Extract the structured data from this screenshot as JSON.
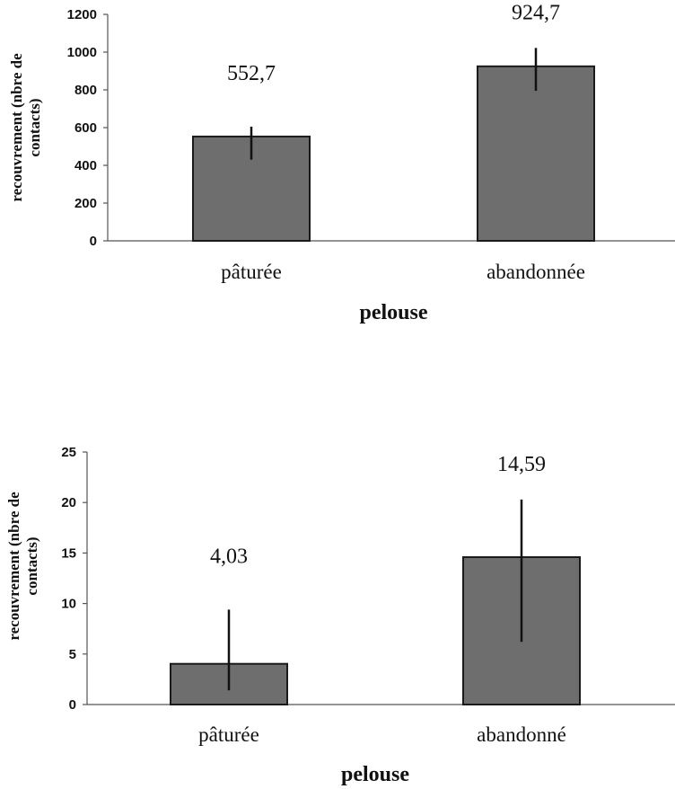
{
  "chart_data": [
    {
      "type": "bar",
      "categories": [
        "pâturée",
        "abandonnée"
      ],
      "values": [
        552.7,
        924.7
      ],
      "error": [
        [
          430,
          605
        ],
        [
          795,
          1022
        ]
      ],
      "data_labels": [
        "552,7",
        "924,7"
      ],
      "ylim": [
        0,
        1200
      ],
      "yticks": [
        0,
        200,
        400,
        600,
        800,
        1000,
        1200
      ],
      "ylabel_lines": [
        "recouvrement (nbre de",
        "contacts)"
      ],
      "xlabel": "pelouse",
      "bar_color": "#6e6e6e"
    },
    {
      "type": "bar",
      "categories": [
        "pâturée",
        "abandonné"
      ],
      "values": [
        4.03,
        14.59
      ],
      "error": [
        [
          1.4,
          9.4
        ],
        [
          6.2,
          20.3
        ]
      ],
      "data_labels": [
        "4,03",
        "14,59"
      ],
      "ylim": [
        0,
        25
      ],
      "yticks": [
        0,
        5,
        10,
        15,
        20,
        25
      ],
      "ylabel_lines": [
        "recouvrement (nbre de",
        "contacts)"
      ],
      "xlabel": "pelouse",
      "bar_color": "#6e6e6e"
    }
  ]
}
